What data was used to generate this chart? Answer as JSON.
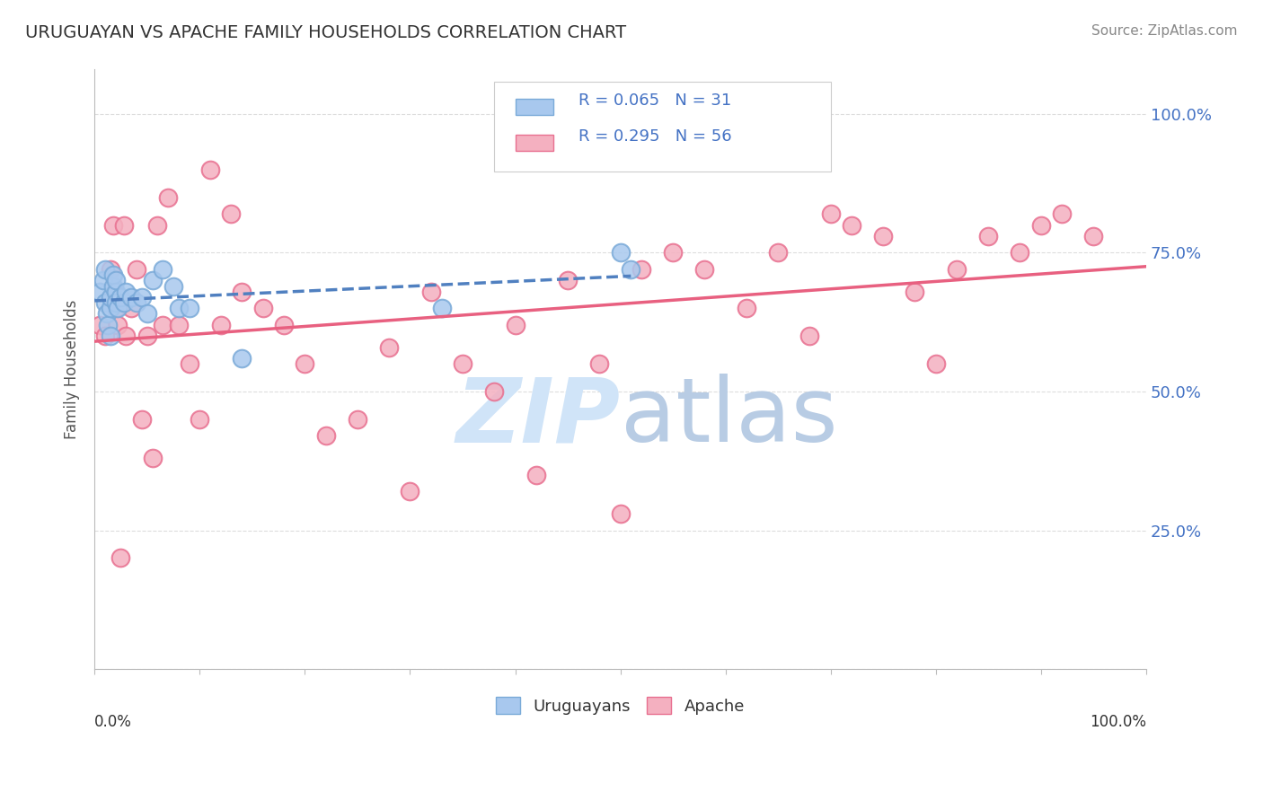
{
  "title": "URUGUAYAN VS APACHE FAMILY HOUSEHOLDS CORRELATION CHART",
  "source": "Source: ZipAtlas.com",
  "ylabel": "Family Households",
  "xlim": [
    0.0,
    1.0
  ],
  "ylim": [
    0.0,
    1.08
  ],
  "ytick_vals": [
    0.0,
    0.25,
    0.5,
    0.75,
    1.0
  ],
  "ytick_labels_right": [
    "",
    "25.0%",
    "50.0%",
    "75.0%",
    "100.0%"
  ],
  "color_uruguayan": "#A8C8EE",
  "color_apache": "#F4B0C0",
  "edge_uruguayan": "#7AAAD8",
  "edge_apache": "#E87090",
  "trendline_uruguayan_color": "#5080C0",
  "trendline_apache_color": "#E86080",
  "watermark_color": "#D0E4F8",
  "background_color": "#FFFFFF",
  "grid_color": "#DDDDDD",
  "uruguayan_x": [
    0.005,
    0.008,
    0.01,
    0.01,
    0.012,
    0.013,
    0.015,
    0.015,
    0.015,
    0.018,
    0.018,
    0.02,
    0.02,
    0.02,
    0.022,
    0.025,
    0.028,
    0.03,
    0.035,
    0.04,
    0.045,
    0.05,
    0.055,
    0.065,
    0.075,
    0.08,
    0.09,
    0.14,
    0.33,
    0.5,
    0.51
  ],
  "uruguayan_y": [
    0.68,
    0.7,
    0.72,
    0.66,
    0.64,
    0.62,
    0.6,
    0.65,
    0.67,
    0.69,
    0.71,
    0.68,
    0.66,
    0.7,
    0.65,
    0.67,
    0.66,
    0.68,
    0.67,
    0.66,
    0.67,
    0.64,
    0.7,
    0.72,
    0.69,
    0.65,
    0.65,
    0.56,
    0.65,
    0.75,
    0.72
  ],
  "apache_x": [
    0.005,
    0.01,
    0.015,
    0.018,
    0.02,
    0.022,
    0.025,
    0.028,
    0.03,
    0.035,
    0.04,
    0.045,
    0.05,
    0.055,
    0.06,
    0.065,
    0.07,
    0.08,
    0.09,
    0.1,
    0.11,
    0.12,
    0.13,
    0.14,
    0.16,
    0.18,
    0.2,
    0.22,
    0.25,
    0.28,
    0.3,
    0.32,
    0.35,
    0.38,
    0.4,
    0.42,
    0.45,
    0.48,
    0.5,
    0.52,
    0.55,
    0.58,
    0.62,
    0.65,
    0.68,
    0.7,
    0.72,
    0.75,
    0.78,
    0.8,
    0.82,
    0.85,
    0.88,
    0.9,
    0.92,
    0.95
  ],
  "apache_y": [
    0.62,
    0.6,
    0.72,
    0.8,
    0.65,
    0.62,
    0.2,
    0.8,
    0.6,
    0.65,
    0.72,
    0.45,
    0.6,
    0.38,
    0.8,
    0.62,
    0.85,
    0.62,
    0.55,
    0.45,
    0.9,
    0.62,
    0.82,
    0.68,
    0.65,
    0.62,
    0.55,
    0.42,
    0.45,
    0.58,
    0.32,
    0.68,
    0.55,
    0.5,
    0.62,
    0.35,
    0.7,
    0.55,
    0.28,
    0.72,
    0.75,
    0.72,
    0.65,
    0.75,
    0.6,
    0.82,
    0.8,
    0.78,
    0.68,
    0.55,
    0.72,
    0.78,
    0.75,
    0.8,
    0.82,
    0.78
  ],
  "legend_text1": "R = 0.065   N = 31",
  "legend_text2": "R = 0.295   N = 56"
}
